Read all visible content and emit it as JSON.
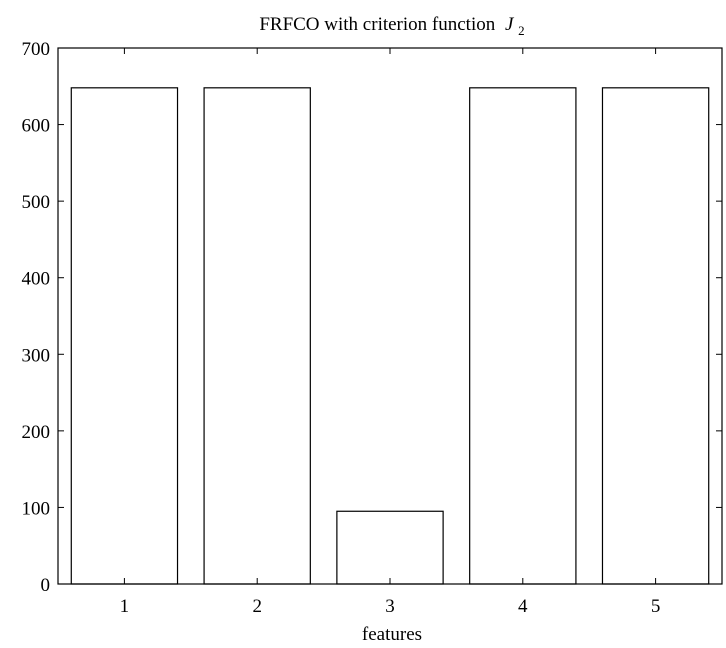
{
  "chart_data": {
    "type": "bar",
    "title": "FRFCO with criterion function",
    "title_math": {
      "symbol": "J",
      "subscript": "2"
    },
    "xlabel": "features",
    "ylabel": "",
    "categories": [
      "1",
      "2",
      "3",
      "4",
      "5"
    ],
    "values": [
      648,
      648,
      95,
      648,
      648
    ],
    "ylim": [
      0,
      700
    ],
    "yticks": [
      0,
      100,
      200,
      300,
      400,
      500,
      600,
      700
    ],
    "yticks_text": [
      "0",
      "100",
      "200",
      "300",
      "400",
      "500",
      "600",
      "700"
    ],
    "grid": false,
    "legend": "none",
    "colors": {
      "bar_fill": "#ffffff",
      "bar_stroke": "#000000",
      "axes": "#000000"
    }
  }
}
